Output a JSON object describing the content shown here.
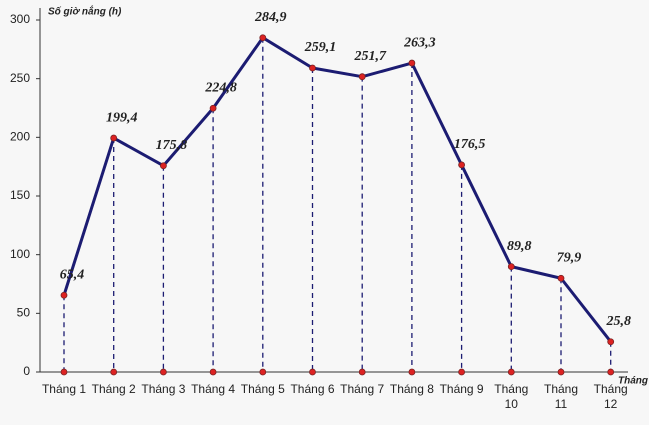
{
  "chart_data": {
    "type": "line",
    "y_label": "Số giờ nắng (h)",
    "x_label": "Tháng",
    "categories": [
      "Tháng 1",
      "Tháng 2",
      "Tháng 3",
      "Tháng 4",
      "Tháng 5",
      "Tháng 6",
      "Tháng 7",
      "Tháng 8",
      "Tháng 9",
      "Tháng 10",
      "Tháng 11",
      "Tháng 12"
    ],
    "values": [
      65.4,
      199.4,
      175.8,
      224.8,
      284.9,
      259.1,
      251.7,
      263.3,
      176.5,
      89.8,
      79.9,
      25.8
    ],
    "value_labels": [
      "65,4",
      "199,4",
      "175,8",
      "224,8",
      "284,9",
      "259,1",
      "251,7",
      "263,3",
      "176,5",
      "89,8",
      "79,9",
      "25,8"
    ],
    "color": "#1c1c72",
    "ylim": [
      0,
      300
    ],
    "yticks": [
      0,
      50,
      100,
      150,
      200,
      250,
      300
    ],
    "grid": false
  }
}
